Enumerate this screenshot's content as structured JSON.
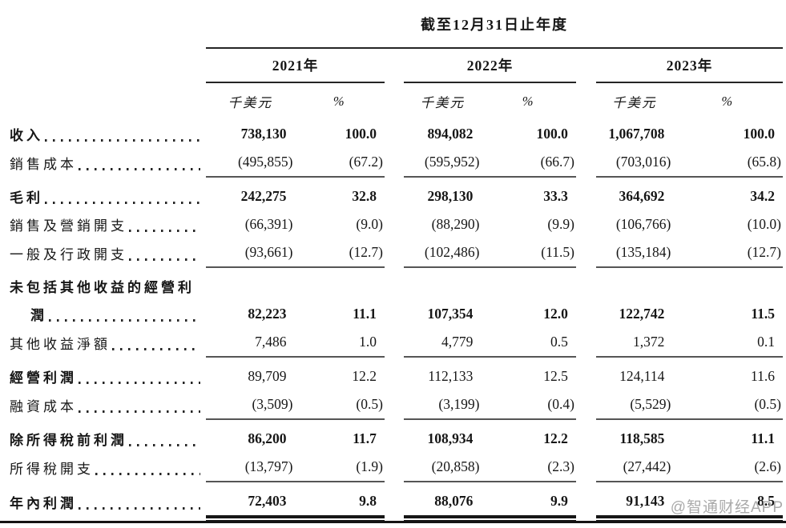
{
  "header": {
    "period_title": "截至12月31日止年度",
    "years": [
      "2021年",
      "2022年",
      "2023年"
    ],
    "unit_label": "千美元",
    "percent_label": "%"
  },
  "rows": [
    {
      "label": "收入",
      "bold": true,
      "bold_values": true,
      "underline": "none",
      "values": [
        "738,130",
        "100.0",
        "894,082",
        "100.0",
        "1,067,708",
        "100.0"
      ]
    },
    {
      "label": "銷售成本",
      "bold": false,
      "bold_values": false,
      "underline": "single",
      "values": [
        "(495,855)",
        "(67.2)",
        "(595,952)",
        "(66.7)",
        "(703,016)",
        "(65.8)"
      ]
    },
    {
      "label": "毛利",
      "bold": true,
      "bold_values": true,
      "underline": "none",
      "values": [
        "242,275",
        "32.8",
        "298,130",
        "33.3",
        "364,692",
        "34.2"
      ]
    },
    {
      "label": "銷售及營銷開支",
      "bold": false,
      "bold_values": false,
      "underline": "none",
      "values": [
        "(66,391)",
        "(9.0)",
        "(88,290)",
        "(9.9)",
        "(106,766)",
        "(10.0)"
      ]
    },
    {
      "label": "一般及行政開支",
      "bold": false,
      "bold_values": false,
      "underline": "single",
      "values": [
        "(93,661)",
        "(12.7)",
        "(102,486)",
        "(11.5)",
        "(135,184)",
        "(12.7)"
      ]
    },
    {
      "label": "未包括其他收益的經營利",
      "label2": "潤",
      "bold": true,
      "bold_values": true,
      "underline": "none",
      "values": [
        "82,223",
        "11.1",
        "107,354",
        "12.0",
        "122,742",
        "11.5"
      ]
    },
    {
      "label": "其他收益淨額",
      "bold": false,
      "bold_values": false,
      "underline": "single",
      "values": [
        "7,486",
        "1.0",
        "4,779",
        "0.5",
        "1,372",
        "0.1"
      ]
    },
    {
      "label": "經營利潤",
      "bold": true,
      "bold_values": false,
      "underline": "none",
      "values": [
        "89,709",
        "12.2",
        "112,133",
        "12.5",
        "124,114",
        "11.6"
      ]
    },
    {
      "label": "融資成本",
      "bold": false,
      "bold_values": false,
      "underline": "single",
      "values": [
        "(3,509)",
        "(0.5)",
        "(3,199)",
        "(0.4)",
        "(5,529)",
        "(0.5)"
      ]
    },
    {
      "label": "除所得稅前利潤",
      "bold": true,
      "bold_values": true,
      "underline": "none",
      "values": [
        "86,200",
        "11.7",
        "108,934",
        "12.2",
        "118,585",
        "11.1"
      ]
    },
    {
      "label": "所得稅開支",
      "bold": false,
      "bold_values": false,
      "underline": "single",
      "values": [
        "(13,797)",
        "(1.9)",
        "(20,858)",
        "(2.3)",
        "(27,442)",
        "(2.6)"
      ]
    },
    {
      "label": "年內利潤",
      "bold": true,
      "bold_values": true,
      "underline": "double",
      "values": [
        "72,403",
        "9.8",
        "88,076",
        "9.9",
        "91,143",
        "8.5"
      ]
    }
  ],
  "watermark": "@智通财经APP",
  "colors": {
    "text": "#161616",
    "rule": "#141414",
    "single_rule": "#555555",
    "watermark": "#aaaaaa"
  }
}
